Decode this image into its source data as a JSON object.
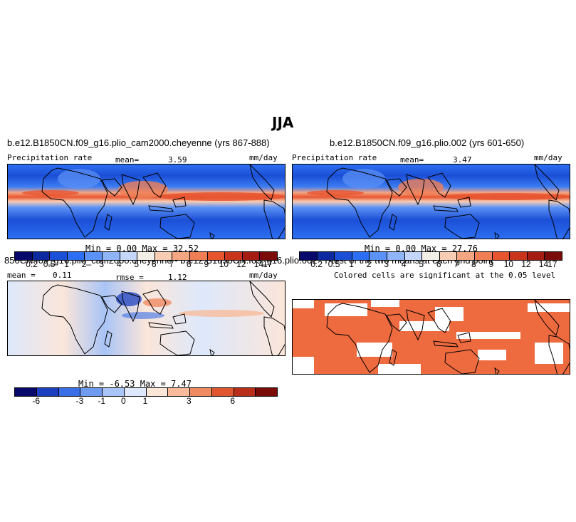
{
  "season": "JJA",
  "panels": [
    {
      "title": "b.e12.B1850CN.f09_g16.plio_cam2000.cheyenne (yrs 867-888)",
      "left_label": "Precipitation rate",
      "stat_label": "mean=",
      "stat_value": "3.59",
      "units": "mm/day",
      "minmax": "Min =    0.00  Max =   32.52"
    },
    {
      "title": "b.e12.B1850CN.f09_g16.plio.002 (yrs 601-650)",
      "left_label": "Precipitation rate",
      "stat_label": "mean=",
      "stat_value": "3.47",
      "units": "mm/day",
      "minmax": "Min =    0.00  Max =   27.76"
    },
    {
      "title": "850CN.f09_g16.plio_cam2000.cheyenne - b.e12.B1850CN.f09_g16.plio.002",
      "left_label": "mean =",
      "left_value": "0.11",
      "stat_label": "rmse =",
      "stat_value": "1.12",
      "units": "mm/day",
      "minmax": "Min =   -6.53  Max =    7.47"
    },
    {
      "title": "T-test of the two means at each grid point",
      "subtitle": "Colored cells are significant at the 0.05 level"
    }
  ],
  "colorbars": {
    "precip": {
      "colors": [
        "#08086b",
        "#0a2a9e",
        "#1b4fd6",
        "#2d6ff2",
        "#5c92f5",
        "#8fb4f7",
        "#c4d7fa",
        "#f3ede8",
        "#f8cdb3",
        "#f4a582",
        "#ef7e55",
        "#e7552f",
        "#c9341c",
        "#a51d12",
        "#7a0b08"
      ],
      "ticks": [
        "0.2",
        "0.5",
        "1",
        "2",
        "3",
        "4",
        "5",
        "6",
        "7",
        "8",
        "9",
        "10",
        "12",
        "14",
        "17"
      ]
    },
    "diff": {
      "colors": [
        "#08086b",
        "#1b3fbf",
        "#3a6ee6",
        "#6e9af0",
        "#a9c4f6",
        "#dde8fb",
        "#fbe6da",
        "#f7bb9b",
        "#f08a61",
        "#e0572f",
        "#b82e19",
        "#7a0b08"
      ],
      "ticks": [
        "-6",
        "-3",
        "-1",
        "0",
        "1",
        "3",
        "6"
      ]
    }
  },
  "colors": {
    "significance": "#ee6a3f"
  }
}
